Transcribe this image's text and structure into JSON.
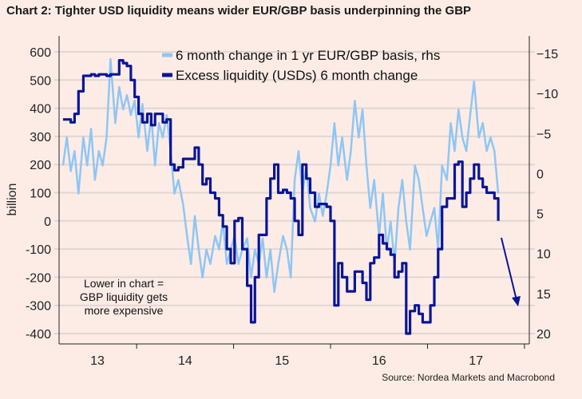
{
  "chart_data": {
    "type": "line",
    "title": "Chart 2: Tighter USD liquidity means wider EUR/GBP basis underpinning the GBP",
    "ylabel": "billion",
    "ylim": [
      -400,
      600
    ],
    "y_ticks": [
      "600",
      "500",
      "400",
      "300",
      "200",
      "100",
      "0",
      "-100",
      "-200",
      "-300",
      "-400"
    ],
    "y2lim": [
      -15,
      20
    ],
    "y2_inverted": true,
    "y2_ticks": [
      "-15",
      "-10",
      "-5",
      "0",
      "5",
      "10",
      "15",
      "20"
    ],
    "xlim": [
      2013.2,
      2018.05
    ],
    "x_ticks": [
      "13",
      "14",
      "15",
      "16",
      "17"
    ],
    "grid": "horizontal",
    "legend_position": "top-center",
    "annotation": [
      "Lower in chart =",
      "GBP liquidity gets",
      "more expensive"
    ],
    "source": "Source: Nordea Markets and Macrobond",
    "colors": {
      "light": "#8ec6f4",
      "dark": "#0a1596",
      "background": "#fdece6",
      "grid": "#e0d6d2"
    },
    "x": [
      2013.24,
      2013.28,
      2013.32,
      2013.36,
      2013.4,
      2013.45,
      2013.49,
      2013.53,
      2013.57,
      2013.61,
      2013.65,
      2013.69,
      2013.73,
      2013.78,
      2013.82,
      2013.86,
      2013.9,
      2013.94,
      2013.98,
      2014.02,
      2014.06,
      2014.11,
      2014.15,
      2014.19,
      2014.23,
      2014.27,
      2014.31,
      2014.35,
      2014.39,
      2014.43,
      2014.48,
      2014.52,
      2014.56,
      2014.6,
      2014.64,
      2014.68,
      2014.72,
      2014.76,
      2014.81,
      2014.85,
      2014.89,
      2014.93,
      2014.97,
      2015.01,
      2015.05,
      2015.09,
      2015.14,
      2015.18,
      2015.22,
      2015.26,
      2015.3,
      2015.34,
      2015.38,
      2015.42,
      2015.46,
      2015.51,
      2015.55,
      2015.59,
      2015.63,
      2015.67,
      2015.71,
      2015.75,
      2015.79,
      2015.84,
      2015.88,
      2015.92,
      2015.96,
      2016.0,
      2016.04,
      2016.08,
      2016.12,
      2016.17,
      2016.21,
      2016.25,
      2016.29,
      2016.33,
      2016.37,
      2016.41,
      2016.45,
      2016.5,
      2016.54,
      2016.58,
      2016.62,
      2016.66,
      2016.7,
      2016.74,
      2016.78,
      2016.82,
      2016.87,
      2016.91,
      2016.95,
      2016.99,
      2017.03,
      2017.07,
      2017.11,
      2017.15,
      2017.2,
      2017.24,
      2017.28,
      2017.32,
      2017.36,
      2017.4,
      2017.44,
      2017.48,
      2017.53,
      2017.57,
      2017.61,
      2017.65,
      2017.69,
      2017.73
    ],
    "series": [
      {
        "name": "6 month change in 1 yr EUR/GBP basis, rhs",
        "axis": "right",
        "values": [
          -1.0,
          -4.5,
          -0.3,
          -2.8,
          2.5,
          -4.5,
          -1.0,
          -5.6,
          0.8,
          -2.8,
          -1.0,
          -4.5,
          -14.3,
          -6.3,
          -10.8,
          -8.0,
          -9.8,
          -7.3,
          -9.1,
          -4.5,
          -8.7,
          -2.8,
          -7.3,
          -1.0,
          -6.3,
          -4.5,
          -7.3,
          -2.8,
          2.5,
          0.8,
          3.9,
          7.8,
          11.3,
          5.3,
          9.5,
          13.0,
          9.5,
          11.3,
          7.8,
          9.5,
          6.0,
          11.3,
          9.5,
          7.8,
          11.3,
          9.5,
          8.1,
          13.0,
          9.5,
          11.3,
          8.1,
          13.0,
          9.5,
          14.8,
          11.3,
          7.8,
          9.5,
          13.0,
          0.8,
          -2.8,
          2.5,
          -1.0,
          4.3,
          6.0,
          2.5,
          5.3,
          2.5,
          -1.0,
          -6.3,
          -1.0,
          -4.5,
          0.8,
          -2.8,
          -9.1,
          -4.5,
          -8.0,
          -1.0,
          4.3,
          0.8,
          7.8,
          2.5,
          9.5,
          6.0,
          11.3,
          4.3,
          0.8,
          6.0,
          9.5,
          -1.0,
          0.8,
          4.3,
          7.8,
          6.0,
          4.3,
          9.5,
          -1.0,
          0.8,
          -6.3,
          -2.8,
          -8.0,
          -4.5,
          -2.8,
          -7.3,
          -11.5,
          -4.5,
          -6.3,
          -2.8,
          -4.5,
          -2.8,
          2.5
        ]
      },
      {
        "name": "Excess liquidity (USDs) 6 month change",
        "axis": "left",
        "values": [
          360,
          360,
          350,
          380,
          460,
          515,
          515,
          520,
          515,
          520,
          520,
          515,
          520,
          520,
          570,
          560,
          550,
          500,
          440,
          380,
          350,
          380,
          340,
          380,
          380,
          350,
          360,
          200,
          180,
          190,
          220,
          220,
          220,
          260,
          200,
          130,
          150,
          100,
          80,
          20,
          -20,
          -100,
          -150,
          0,
          10,
          -100,
          -230,
          -360,
          -200,
          -50,
          -50,
          80,
          150,
          200,
          100,
          110,
          100,
          80,
          0,
          -50,
          200,
          150,
          100,
          50,
          60,
          60,
          50,
          0,
          -300,
          -150,
          -200,
          -250,
          -250,
          -180,
          -180,
          -220,
          -280,
          -150,
          -130,
          -50,
          -80,
          -100,
          -120,
          -200,
          -180,
          -150,
          -400,
          -320,
          -300,
          -330,
          -360,
          -360,
          -300,
          -200,
          -100,
          50,
          80,
          80,
          200,
          210,
          50,
          100,
          150,
          200,
          150,
          120,
          100,
          100,
          80,
          0
        ]
      }
    ]
  }
}
